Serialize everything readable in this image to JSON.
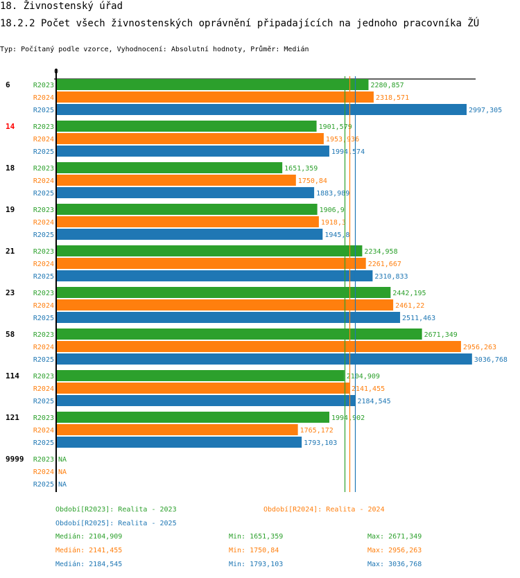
{
  "header": {
    "title": "18. Živnostenský úřad",
    "chart_title": "18.2.2 Počet všech živnostenských oprávnění připadajících na jednoho pracovníka ŽÚ",
    "subtitle": "Typ: Počítaný podle vzorce, Vyhodnocení: Absolutní hodnoty, Průměr: Medián"
  },
  "colors": {
    "R2023": "#2ca02c",
    "R2024": "#ff7f0e",
    "R2025": "#1f77b4",
    "highlight_category": "#ff0000",
    "category": "#000000",
    "axis": "#000000"
  },
  "chart_data": {
    "type": "bar",
    "orientation": "horizontal",
    "title": "18.2.2 Počet všech živnostenských oprávnění připadajících na jednoho pracovníka ŽÚ",
    "xlabel": "",
    "ylabel": "",
    "x_tick_labels": [
      "0"
    ],
    "xlim": [
      0,
      3080
    ],
    "grid": false,
    "highlighted_category": "14",
    "categories": [
      "6",
      "14",
      "18",
      "19",
      "21",
      "23",
      "58",
      "114",
      "121",
      "9999"
    ],
    "series": [
      {
        "name": "R2023",
        "values": [
          2280.857,
          1901.579,
          1651.359,
          1906.9,
          2234.958,
          2442.195,
          2671.349,
          2104.909,
          1994.902,
          null
        ],
        "labels": [
          "2280,857",
          "1901,579",
          "1651,359",
          "1906,9",
          "2234,958",
          "2442,195",
          "2671,349",
          "2104,909",
          "1994,902",
          "NA"
        ]
      },
      {
        "name": "R2024",
        "values": [
          2318.571,
          1953.936,
          1750.84,
          1918.3,
          2261.667,
          2461.22,
          2956.263,
          2141.455,
          1765.172,
          null
        ],
        "labels": [
          "2318,571",
          "1953,936",
          "1750,84",
          "1918,3",
          "2261,667",
          "2461,22",
          "2956,263",
          "2141,455",
          "1765,172",
          "NA"
        ]
      },
      {
        "name": "R2025",
        "values": [
          2997.305,
          1994.574,
          1883.989,
          1945.8,
          2310.833,
          2511.463,
          3036.768,
          2184.545,
          1793.103,
          null
        ],
        "labels": [
          "2997,305",
          "1994,574",
          "1883,989",
          "1945,8",
          "2310,833",
          "2511,463",
          "3036,768",
          "2184,545",
          "1793,103",
          "NA"
        ]
      }
    ],
    "reference_lines": [
      {
        "series": "R2023",
        "type": "median",
        "value": 2104.909
      },
      {
        "series": "R2024",
        "type": "median",
        "value": 2141.455
      },
      {
        "series": "R2025",
        "type": "median",
        "value": 2184.545
      }
    ],
    "legend": [
      {
        "series": "R2023",
        "text": "Období[R2023]: Realita - 2023"
      },
      {
        "series": "R2024",
        "text": "Období[R2024]: Realita - 2024"
      },
      {
        "series": "R2025",
        "text": "Období[R2025]: Realita - 2025"
      }
    ],
    "legend_placement": "bottom",
    "stats": [
      {
        "series": "R2023",
        "median": "Medián: 2104,909",
        "min": "Min: 1651,359",
        "max": "Max: 2671,349"
      },
      {
        "series": "R2024",
        "median": "Medián: 2141,455",
        "min": "Min: 1750,84",
        "max": "Max: 2956,263"
      },
      {
        "series": "R2025",
        "median": "Medián: 2184,545",
        "min": "Min: 1793,103",
        "max": "Max: 3036,768"
      }
    ]
  }
}
